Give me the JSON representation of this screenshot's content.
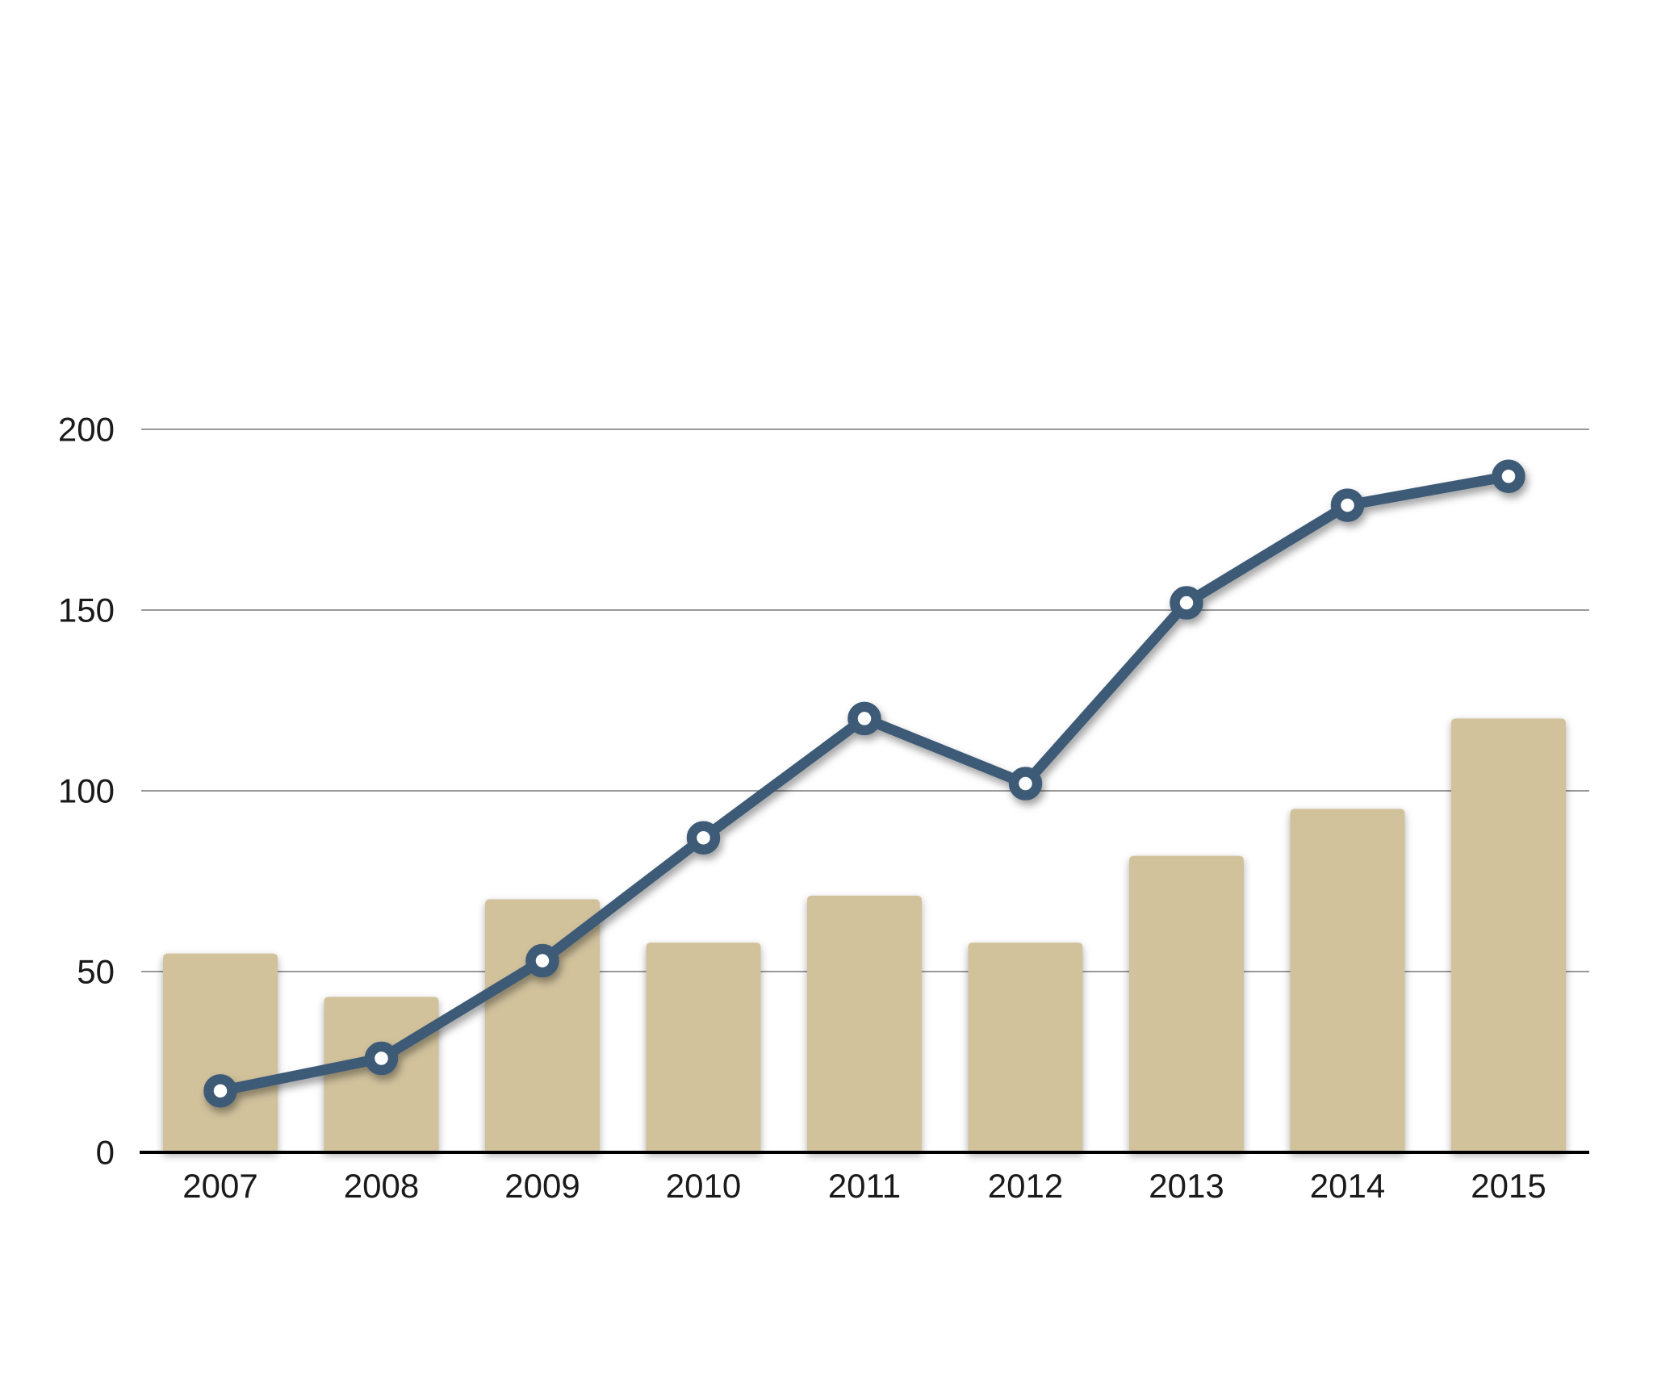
{
  "chart_data": {
    "type": "combo-bar-line",
    "title": "",
    "xlabel": "",
    "ylabel": "",
    "categories": [
      "2007",
      "2008",
      "2009",
      "2010",
      "2011",
      "2012",
      "2013",
      "2014",
      "2015"
    ],
    "series": [
      {
        "name": "bars",
        "type": "bar",
        "values": [
          55,
          43,
          70,
          58,
          71,
          58,
          82,
          95,
          120
        ]
      },
      {
        "name": "line",
        "type": "line",
        "values": [
          17,
          26,
          53,
          87,
          120,
          102,
          152,
          179,
          187
        ]
      }
    ],
    "ylim": [
      0,
      200
    ],
    "yticks": [
      "0",
      "50",
      "100",
      "150",
      "200"
    ],
    "ytick_values": [
      0,
      50,
      100,
      150,
      200
    ],
    "grid": true,
    "legend": "none",
    "colors": {
      "bar": "#d1c29c",
      "line": "#3d5a76",
      "marker_fill": "#ffffff",
      "grid": "#999999",
      "axis": "#000000",
      "label": "#1a1a1a",
      "background": "#ffffff"
    }
  }
}
